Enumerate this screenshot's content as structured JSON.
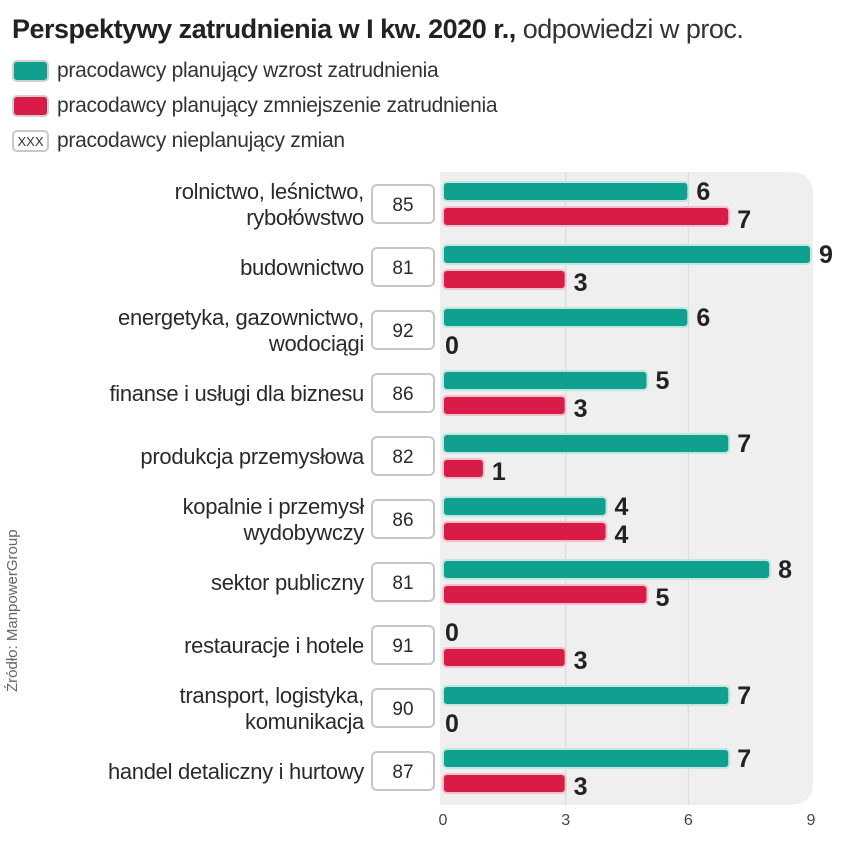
{
  "title": {
    "bold": "Perspektywy zatrudnienia w I kw. 2020 r.,",
    "light": " odpowiedzi w proc."
  },
  "legend": [
    {
      "key": "increase",
      "label": "pracodawcy planujący wzrost zatrudnienia",
      "color": "#0fa08f"
    },
    {
      "key": "decrease",
      "label": "pracodawcy planujący zmniejszenie zatrudnienia",
      "color": "#d91b48"
    },
    {
      "key": "nochange",
      "label": "pracodawcy nieplanujący zmian",
      "swatch_text": "XXX"
    }
  ],
  "source": "Źródło: ManpowerGroup",
  "colors": {
    "increase": "#0fa08f",
    "decrease": "#d91b48",
    "panel": "#efefef",
    "grid": "#d8d8d8"
  },
  "chart_data": {
    "type": "bar",
    "orientation": "horizontal",
    "title": "Perspektywy zatrudnienia w I kw. 2020 r., odpowiedzi w proc.",
    "xlabel": "",
    "ylabel": "",
    "xlim": [
      0,
      9
    ],
    "xticks": [
      0,
      3,
      6,
      9
    ],
    "grid": true,
    "legend_position": "top-left",
    "categories": [
      [
        "rolnictwo, leśnictwo,",
        "rybołówstwo"
      ],
      [
        "budownictwo"
      ],
      [
        "energetyka, gazownictwo,",
        "wodociągi"
      ],
      [
        "finanse i usługi dla biznesu"
      ],
      [
        "produkcja przemysłowa"
      ],
      [
        "kopalnie i przemysł",
        "wydobywczy"
      ],
      [
        "sektor publiczny"
      ],
      [
        "restauracje i hotele"
      ],
      [
        "transport, logistyka,",
        "komunikacja"
      ],
      [
        "handel detaliczny i hurtowy"
      ]
    ],
    "series": [
      {
        "name": "pracodawcy planujący wzrost zatrudnienia",
        "key": "increase",
        "values": [
          6,
          9,
          6,
          5,
          7,
          4,
          8,
          0,
          7,
          7
        ]
      },
      {
        "name": "pracodawcy planujący zmniejszenie zatrudnienia",
        "key": "decrease",
        "values": [
          7,
          3,
          0,
          3,
          1,
          4,
          5,
          3,
          0,
          3
        ]
      },
      {
        "name": "pracodawcy nieplanujący zmian",
        "key": "nochange",
        "values": [
          85,
          81,
          92,
          86,
          82,
          86,
          81,
          91,
          90,
          87
        ]
      }
    ]
  }
}
